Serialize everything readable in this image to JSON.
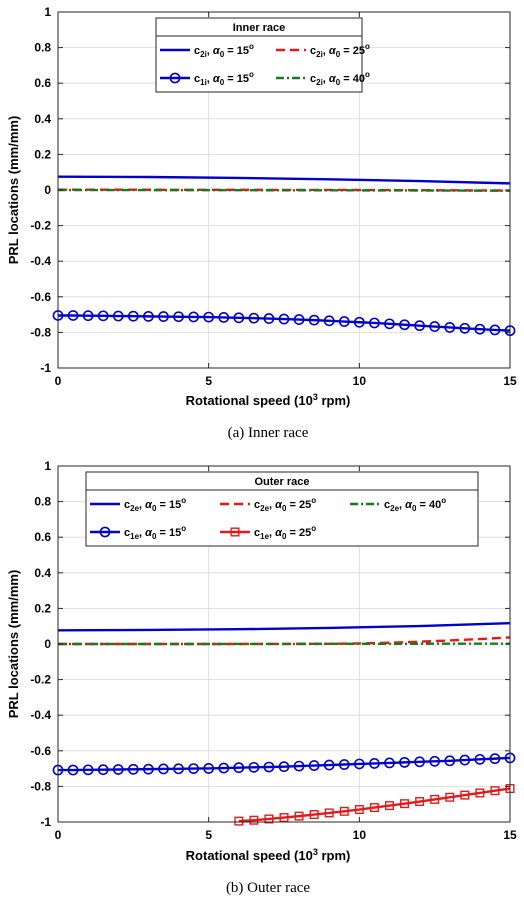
{
  "chart_data": [
    {
      "type": "line",
      "caption": "(a) Inner race",
      "legend_title": "Inner race",
      "xlabel": "Rotational speed (10³ rpm)",
      "ylabel": "PRL locations (mm/mm)",
      "xlim": [
        0,
        15
      ],
      "ylim": [
        -1,
        1
      ],
      "xticks": [
        0,
        5,
        10,
        15
      ],
      "yticks": [
        -1,
        -0.8,
        -0.6,
        -0.4,
        -0.2,
        0,
        0.2,
        0.4,
        0.6,
        0.8,
        1
      ],
      "grid": true,
      "legend_position": "top-center",
      "series": [
        {
          "name": "c2i, α0 = 15°",
          "label_base": "c",
          "label_sub": "2i",
          "alpha_deg": "15",
          "color": "#0000cc",
          "style": "solid",
          "marker": "none",
          "x": [
            0,
            3,
            6,
            9,
            12,
            15
          ],
          "y": [
            0.075,
            0.073,
            0.068,
            0.06,
            0.05,
            0.037
          ]
        },
        {
          "name": "c2i, α0 = 25°",
          "label_base": "c",
          "label_sub": "2i",
          "alpha_deg": "25",
          "color": "#e31a1c",
          "style": "dashed",
          "marker": "none",
          "x": [
            0,
            5,
            10,
            15
          ],
          "y": [
            0.002,
            0.001,
            0.0,
            -0.003
          ]
        },
        {
          "name": "c1i, α0 = 15°",
          "label_base": "c",
          "label_sub": "1i",
          "alpha_deg": "15",
          "color": "#0000cc",
          "style": "solid",
          "marker": "circle",
          "x": [
            0,
            0.5,
            1,
            1.5,
            2,
            2.5,
            3,
            3.5,
            4,
            4.5,
            5,
            5.5,
            6,
            6.5,
            7,
            7.5,
            8,
            8.5,
            9,
            9.5,
            10,
            10.5,
            11,
            11.5,
            12,
            12.5,
            13,
            13.5,
            14,
            14.5,
            15
          ],
          "y": [
            -0.705,
            -0.705,
            -0.706,
            -0.707,
            -0.708,
            -0.709,
            -0.71,
            -0.711,
            -0.712,
            -0.713,
            -0.714,
            -0.716,
            -0.718,
            -0.72,
            -0.722,
            -0.725,
            -0.728,
            -0.731,
            -0.735,
            -0.739,
            -0.743,
            -0.747,
            -0.752,
            -0.757,
            -0.762,
            -0.767,
            -0.772,
            -0.777,
            -0.782,
            -0.786,
            -0.79
          ]
        },
        {
          "name": "c2i, α0 = 40°",
          "label_base": "c",
          "label_sub": "2i",
          "alpha_deg": "40",
          "color": "#1b7a1b",
          "style": "dashdot",
          "marker": "none",
          "x": [
            0,
            5,
            10,
            15
          ],
          "y": [
            0.0,
            -0.001,
            -0.002,
            -0.004
          ]
        }
      ]
    },
    {
      "type": "line",
      "caption": "(b) Outer race",
      "legend_title": "Outer race",
      "xlabel": "Rotational speed (10³ rpm)",
      "ylabel": "PRL locations (mm/mm)",
      "xlim": [
        0,
        15
      ],
      "ylim": [
        -1,
        1
      ],
      "xticks": [
        0,
        5,
        10,
        15
      ],
      "yticks": [
        -1,
        -0.8,
        -0.6,
        -0.4,
        -0.2,
        0,
        0.2,
        0.4,
        0.6,
        0.8,
        1
      ],
      "grid": true,
      "legend_position": "top-center",
      "series": [
        {
          "name": "c2e, α0 = 15°",
          "label_base": "c",
          "label_sub": "2e",
          "alpha_deg": "15",
          "color": "#0000cc",
          "style": "solid",
          "marker": "none",
          "x": [
            0,
            3,
            6,
            9,
            12,
            15
          ],
          "y": [
            0.077,
            0.079,
            0.083,
            0.09,
            0.101,
            0.117
          ]
        },
        {
          "name": "c2e, α0 = 25°",
          "label_base": "c",
          "label_sub": "2e",
          "alpha_deg": "25",
          "color": "#e31a1c",
          "style": "dashed",
          "marker": "none",
          "x": [
            0,
            3,
            6,
            9,
            10,
            11,
            12,
            13,
            14,
            15
          ],
          "y": [
            0.0,
            0.0,
            0.0,
            0.001,
            0.003,
            0.007,
            0.013,
            0.02,
            0.028,
            0.037
          ]
        },
        {
          "name": "c2e, α0 = 40°",
          "label_base": "c",
          "label_sub": "2e",
          "alpha_deg": "40",
          "color": "#1b7a1b",
          "style": "dashdot",
          "marker": "none",
          "x": [
            0,
            5,
            10,
            15
          ],
          "y": [
            0.0,
            0.0,
            0.001,
            0.002
          ]
        },
        {
          "name": "c1e, α0 = 15°",
          "label_base": "c",
          "label_sub": "1e",
          "alpha_deg": "15",
          "color": "#0000cc",
          "style": "solid",
          "marker": "circle",
          "x": [
            0,
            0.5,
            1,
            1.5,
            2,
            2.5,
            3,
            3.5,
            4,
            4.5,
            5,
            5.5,
            6,
            6.5,
            7,
            7.5,
            8,
            8.5,
            9,
            9.5,
            10,
            10.5,
            11,
            11.5,
            12,
            12.5,
            13,
            13.5,
            14,
            14.5,
            15
          ],
          "y": [
            -0.708,
            -0.708,
            -0.707,
            -0.706,
            -0.705,
            -0.704,
            -0.703,
            -0.702,
            -0.701,
            -0.7,
            -0.699,
            -0.697,
            -0.695,
            -0.693,
            -0.691,
            -0.689,
            -0.686,
            -0.683,
            -0.68,
            -0.677,
            -0.674,
            -0.671,
            -0.668,
            -0.665,
            -0.662,
            -0.659,
            -0.656,
            -0.652,
            -0.648,
            -0.644,
            -0.64
          ]
        },
        {
          "name": "c1e, α0 = 25°",
          "label_base": "c",
          "label_sub": "1e",
          "alpha_deg": "25",
          "color": "#e31a1c",
          "style": "solid",
          "marker": "square",
          "x": [
            6.0,
            6.5,
            7.0,
            7.5,
            8.0,
            8.5,
            9.0,
            9.5,
            10.0,
            10.5,
            11.0,
            11.5,
            12.0,
            12.5,
            13.0,
            13.5,
            14.0,
            14.5,
            15.0
          ],
          "y": [
            -0.995,
            -0.99,
            -0.983,
            -0.975,
            -0.967,
            -0.958,
            -0.949,
            -0.94,
            -0.93,
            -0.919,
            -0.908,
            -0.897,
            -0.885,
            -0.873,
            -0.861,
            -0.849,
            -0.837,
            -0.824,
            -0.812
          ]
        }
      ]
    }
  ]
}
